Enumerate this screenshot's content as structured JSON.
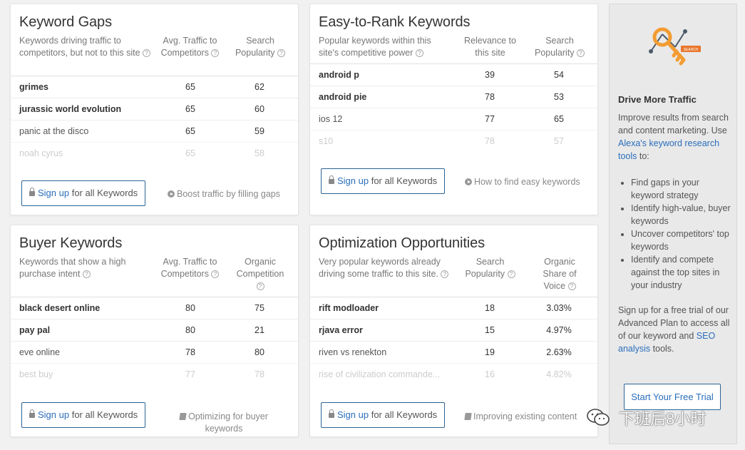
{
  "keyword_gaps": {
    "title": "Keyword Gaps",
    "col1": "Keywords driving traffic to competitors, but not to this site",
    "col2": "Avg. Traffic to Competitors",
    "col3": "Search Popularity",
    "rows": [
      {
        "kw": "grimes",
        "a": "65",
        "b": "62"
      },
      {
        "kw": "jurassic world evolution",
        "a": "65",
        "b": "60"
      },
      {
        "kw": "panic at the disco",
        "a": "65",
        "b": "59"
      },
      {
        "kw": "noah cyrus",
        "a": "65",
        "b": "58"
      }
    ],
    "signup_link": "Sign up",
    "signup_rest": " for all Keywords",
    "aux": "Boost traffic by filling gaps"
  },
  "easy_rank": {
    "title": "Easy-to-Rank Keywords",
    "col1": "Popular keywords within this site's competitive power",
    "col2": "Relevance to this site",
    "col3": "Search Popularity",
    "rows": [
      {
        "kw": "android p",
        "a": "39",
        "b": "54"
      },
      {
        "kw": "android pie",
        "a": "78",
        "b": "53"
      },
      {
        "kw": "ios 12",
        "a": "77",
        "b": "65"
      },
      {
        "kw": "s10",
        "a": "78",
        "b": "57"
      }
    ],
    "signup_link": "Sign up",
    "signup_rest": " for all Keywords",
    "aux": "How to find easy keywords"
  },
  "buyer": {
    "title": "Buyer Keywords",
    "col1": "Keywords that show a high purchase intent",
    "col2": "Avg. Traffic to Competitors",
    "col3": "Organic Competition",
    "rows": [
      {
        "kw": "black desert online",
        "a": "80",
        "b": "75"
      },
      {
        "kw": "pay pal",
        "a": "80",
        "b": "21"
      },
      {
        "kw": "eve online",
        "a": "78",
        "b": "80"
      },
      {
        "kw": "best buy",
        "a": "77",
        "b": "78"
      }
    ],
    "signup_link": "Sign up",
    "signup_rest": " for all Keywords",
    "aux": "Optimizing for buyer keywords"
  },
  "optimization": {
    "title": "Optimization Opportunities",
    "col1": "Very popular keywords already driving some traffic to this site.",
    "col2": "Search Popularity",
    "col3": "Organic Share of Voice",
    "rows": [
      {
        "kw": "rift modloader",
        "a": "18",
        "b": "3.03%"
      },
      {
        "kw": "rjava error",
        "a": "15",
        "b": "4.97%"
      },
      {
        "kw": "riven vs renekton",
        "a": "19",
        "b": "2.63%"
      },
      {
        "kw": "rise of civilization commande...",
        "a": "16",
        "b": "4.82%"
      }
    ],
    "signup_link": "Sign up",
    "signup_rest": " for all Keywords",
    "aux": "Improving existing content"
  },
  "sidebar": {
    "icon": "key-search-icon",
    "key_tag": "SEARCH",
    "heading": "Drive More Traffic",
    "intro_a": "Improve results from search and content marketing. Use ",
    "intro_link": "Alexa's keyword research tools",
    "intro_b": " to:",
    "bullets": [
      "Find gaps in your keyword strategy",
      "Identify high-value, buyer keywords",
      "Uncover competitors' top keywords",
      "Identify and compete against the top sites in your industry"
    ],
    "outro_a": "Sign up for a free trial of our Advanced Plan to access all of our keyword and ",
    "outro_link": "SEO analysis",
    "outro_b": " tools.",
    "cta": "Start Your Free Trial"
  },
  "watermark": {
    "text": "下班后8小时",
    "icon": "wechat-icon"
  },
  "colors": {
    "accent": "#2a6ebb",
    "key_orange": "#f39c33"
  }
}
